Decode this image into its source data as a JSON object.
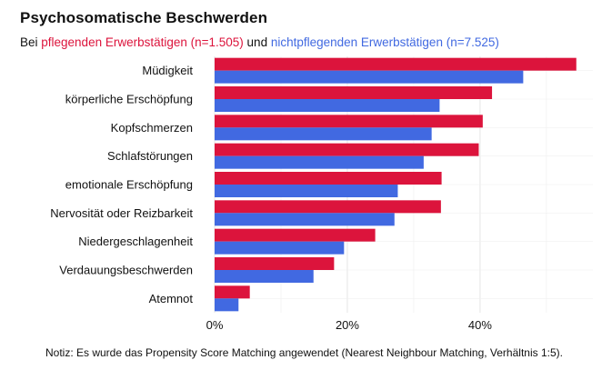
{
  "chart_data": {
    "type": "bar",
    "orientation": "horizontal",
    "title": "Psychosomatische Beschwerden",
    "subtitle": {
      "prefix": "Bei ",
      "series1_label": "pflegenden Erwerbstätigen (n=1.505)",
      "connector": " und ",
      "series2_label": "nichtpflegenden Erwerbstätigen (n=7.525)"
    },
    "categories": [
      "Müdigkeit",
      "körperliche Erschöpfung",
      "Kopfschmerzen",
      "Schlafstörungen",
      "emotionale Erschöpfung",
      "Nervosität oder Reizbarkeit",
      "Niedergeschlagenheit",
      "Verdauungsbeschwerden",
      "Atemnot"
    ],
    "series": [
      {
        "name": "pflegende Erwerbstätige",
        "color": "#dc143c",
        "values": [
          54.5,
          41.8,
          40.4,
          39.8,
          34.2,
          34.1,
          24.2,
          18.0,
          5.3
        ]
      },
      {
        "name": "nichtpflegende Erwerbstätige",
        "color": "#4169e1",
        "values": [
          46.5,
          33.9,
          32.7,
          31.5,
          27.6,
          27.1,
          19.5,
          14.9,
          3.6
        ]
      }
    ],
    "xlim": [
      0,
      57
    ],
    "xticks": [
      0,
      20,
      40
    ],
    "xtick_labels": [
      "0%",
      "20%",
      "40%"
    ],
    "xlabel": "",
    "ylabel": "",
    "grid": true
  },
  "note": "Notiz: Es wurde das Propensity Score Matching angewendet (Nearest Neighbour Matching, Verhältnis 1:5)."
}
